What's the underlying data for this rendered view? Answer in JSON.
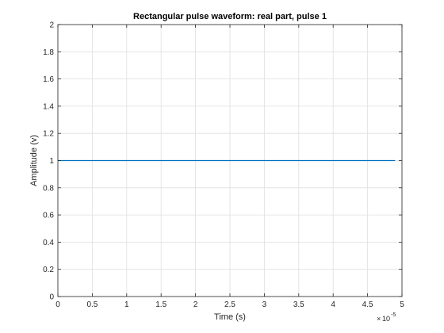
{
  "chart_data": {
    "type": "line",
    "title": "Rectangular pulse waveform: real part, pulse 1",
    "xlabel": "Time (s)",
    "ylabel": "Amplitude (v)",
    "x_exponent_base": "10",
    "x_exponent_power": "-5",
    "xlim": [
      0,
      5
    ],
    "ylim": [
      0,
      2
    ],
    "grid": true,
    "x_ticks": [
      "0",
      "0.5",
      "1",
      "1.5",
      "2",
      "2.5",
      "3",
      "3.5",
      "4",
      "4.5",
      "5"
    ],
    "y_ticks": [
      "0",
      "0.2",
      "0.4",
      "0.6",
      "0.8",
      "1",
      "1.2",
      "1.4",
      "1.6",
      "1.8",
      "2"
    ],
    "x_unit_scale": 1e-05,
    "series": [
      {
        "color": "#0072bd",
        "x": [
          0,
          4.9
        ],
        "y": [
          1,
          1
        ]
      }
    ]
  }
}
